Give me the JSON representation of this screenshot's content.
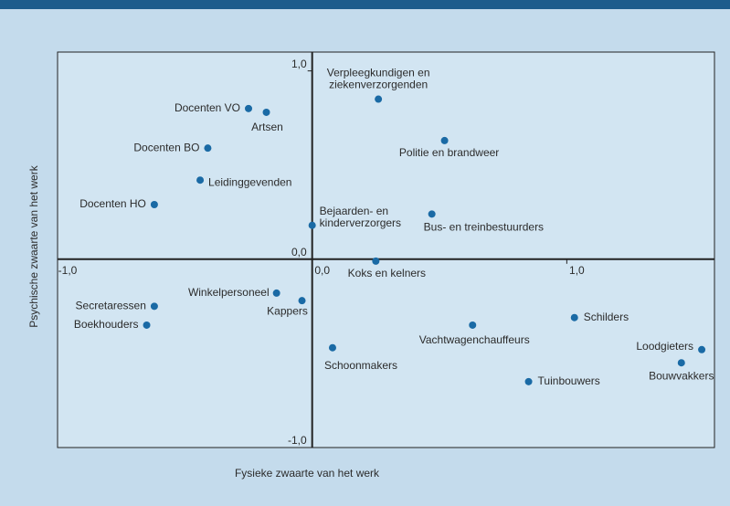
{
  "chart_data": {
    "type": "scatter",
    "x_label": "Fysieke zwaarte van het werk",
    "y_label": "Psychische zwaarte van het werk",
    "xlim": [
      -1.0,
      1.58
    ],
    "ylim": [
      -1.0,
      1.1
    ],
    "xticks": [
      {
        "value": -1,
        "label": "-1,0"
      },
      {
        "value": 0,
        "label": "0,0"
      },
      {
        "value": 1,
        "label": "1,0"
      }
    ],
    "yticks": [
      {
        "value": 1,
        "label": "1,0"
      },
      {
        "value": 0,
        "label": "0,0"
      },
      {
        "value": -1,
        "label": "-1,0"
      }
    ],
    "color": "#1a6aa5",
    "labels": [
      "Docenten VO",
      "Artsen",
      "Docenten BO",
      "Leidinggevenden",
      "Docenten HO",
      [
        "Verpleegkundigen en",
        "ziekenverzorgenden"
      ],
      "Politie en brandweer",
      [
        "Bejaarden- en",
        "kinderverzorgers"
      ],
      "Bus- en treinbestuurders",
      "Koks en kelners",
      "Winkelpersoneel",
      "Kappers",
      "Secretaressen",
      "Boekhouders",
      "Schoonmakers",
      "Vachtwagenchauffeurs",
      "Schilders",
      "Tuinbouwers",
      "Loodgieters",
      "Bouwvakkers"
    ],
    "x": [
      -0.25,
      -0.18,
      -0.41,
      -0.44,
      -0.62,
      0.26,
      0.52,
      0.0,
      0.47,
      0.25,
      -0.14,
      -0.04,
      -0.62,
      -0.65,
      0.08,
      0.63,
      1.03,
      0.85,
      1.53,
      1.45
    ],
    "y": [
      0.8,
      0.78,
      0.59,
      0.42,
      0.29,
      0.85,
      0.63,
      0.18,
      0.24,
      -0.01,
      -0.18,
      -0.22,
      -0.25,
      -0.35,
      -0.47,
      -0.35,
      -0.31,
      -0.65,
      -0.48,
      -0.55
    ]
  }
}
